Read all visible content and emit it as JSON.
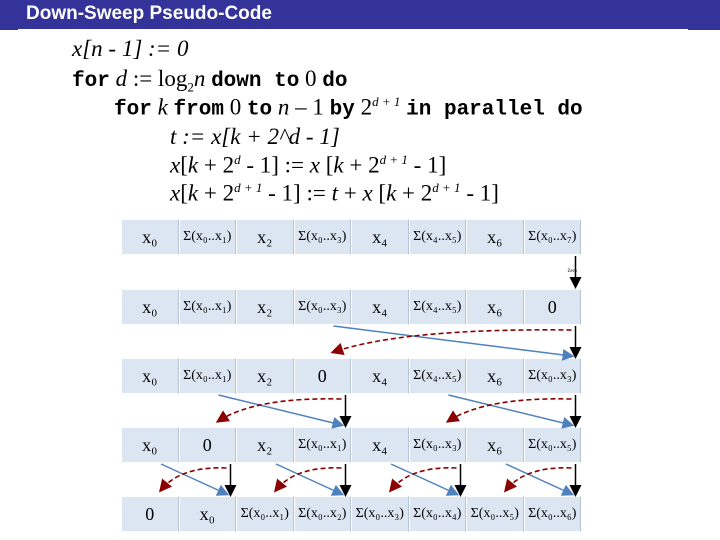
{
  "title": "Down-Sweep Pseudo-Code",
  "code": {
    "line1": "x[n - 1] := 0",
    "line2": "for d := log2n down to 0 do",
    "line3": "for k from 0 to n – 1 by 2^(d+1) in parallel do",
    "line4": "t := x[k + 2^d - 1]",
    "line5": "x[k + 2^d - 1] := x [k + 2^(d+1) - 1]",
    "line6": "x[k + 2^(d+1) - 1] := t + x [k + 2^(d+1) - 1]"
  },
  "zero_label": "Zero",
  "rows": [
    [
      "x₀",
      "Σ(x₀..x₁)",
      "x₂",
      "Σ(x₀..x₃)",
      "x₄",
      "Σ(x₄..x₅)",
      "x₆",
      "Σ(x₀..x₇)"
    ],
    [
      "x₀",
      "Σ(x₀..x₁)",
      "x₂",
      "Σ(x₀..x₃)",
      "x₄",
      "Σ(x₄..x₅)",
      "x₆",
      "0"
    ],
    [
      "x₀",
      "Σ(x₀..x₁)",
      "x₂",
      "0",
      "x₄",
      "Σ(x₄..x₅)",
      "x₆",
      "Σ(x₀..x₃)"
    ],
    [
      "x₀",
      "0",
      "x₂",
      "Σ(x₀..x₁)",
      "x₄",
      "Σ(x₀..x₃)",
      "x₆",
      "Σ(x₀..x₅)"
    ],
    [
      "0",
      "x₀",
      "Σ(x₀..x₁)",
      "Σ(x₀..x₂)",
      "Σ(x₀..x₃)",
      "Σ(x₀..x₄)",
      "Σ(x₀..x₅)",
      "Σ(x₀..x₆)"
    ]
  ],
  "colors": {
    "header": "#333399",
    "cell": "#dce6f2",
    "blue_arrow": "#4f81bd",
    "red_arrow": "#8b0000"
  }
}
